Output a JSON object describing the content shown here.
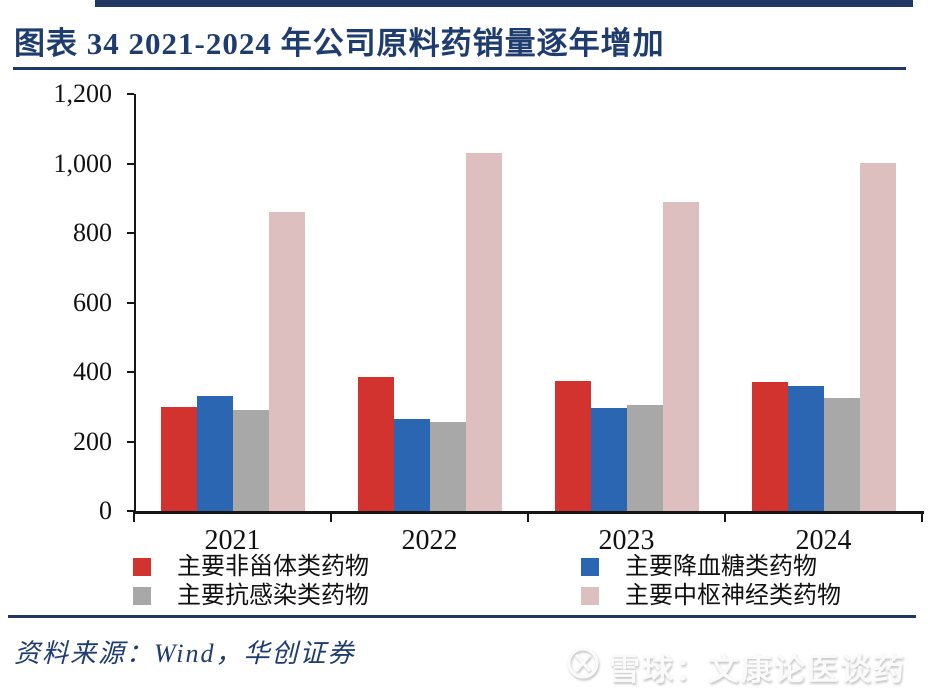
{
  "page": {
    "title": "图表 34   2021-2024 年公司原料药销量逐年增加",
    "source": "资料来源：Wind，华创证券",
    "watermark_text": "雪球：文康论医谈药",
    "accent_color": "#1f3864"
  },
  "chart_data": {
    "type": "bar",
    "title": "2021-2024 年公司原料药销量逐年增加",
    "categories": [
      "2021",
      "2022",
      "2023",
      "2024"
    ],
    "series": [
      {
        "name": "主要非甾体类药物",
        "color": "#d2332e",
        "values": [
          300,
          385,
          375,
          370
        ]
      },
      {
        "name": "主要降血糖类药物",
        "color": "#2a66b2",
        "values": [
          330,
          265,
          295,
          360
        ]
      },
      {
        "name": "主要抗感染类药物",
        "color": "#a8a8a8",
        "values": [
          290,
          255,
          305,
          325
        ]
      },
      {
        "name": "主要中枢神经类药物",
        "color": "#ddbfbf",
        "values": [
          860,
          1030,
          890,
          1000
        ]
      }
    ],
    "xlabel": "",
    "ylabel": "",
    "ylim": [
      0,
      1200
    ],
    "yticks": [
      0,
      200,
      400,
      600,
      800,
      1000,
      1200
    ],
    "grid": false,
    "legend_position": "bottom"
  }
}
